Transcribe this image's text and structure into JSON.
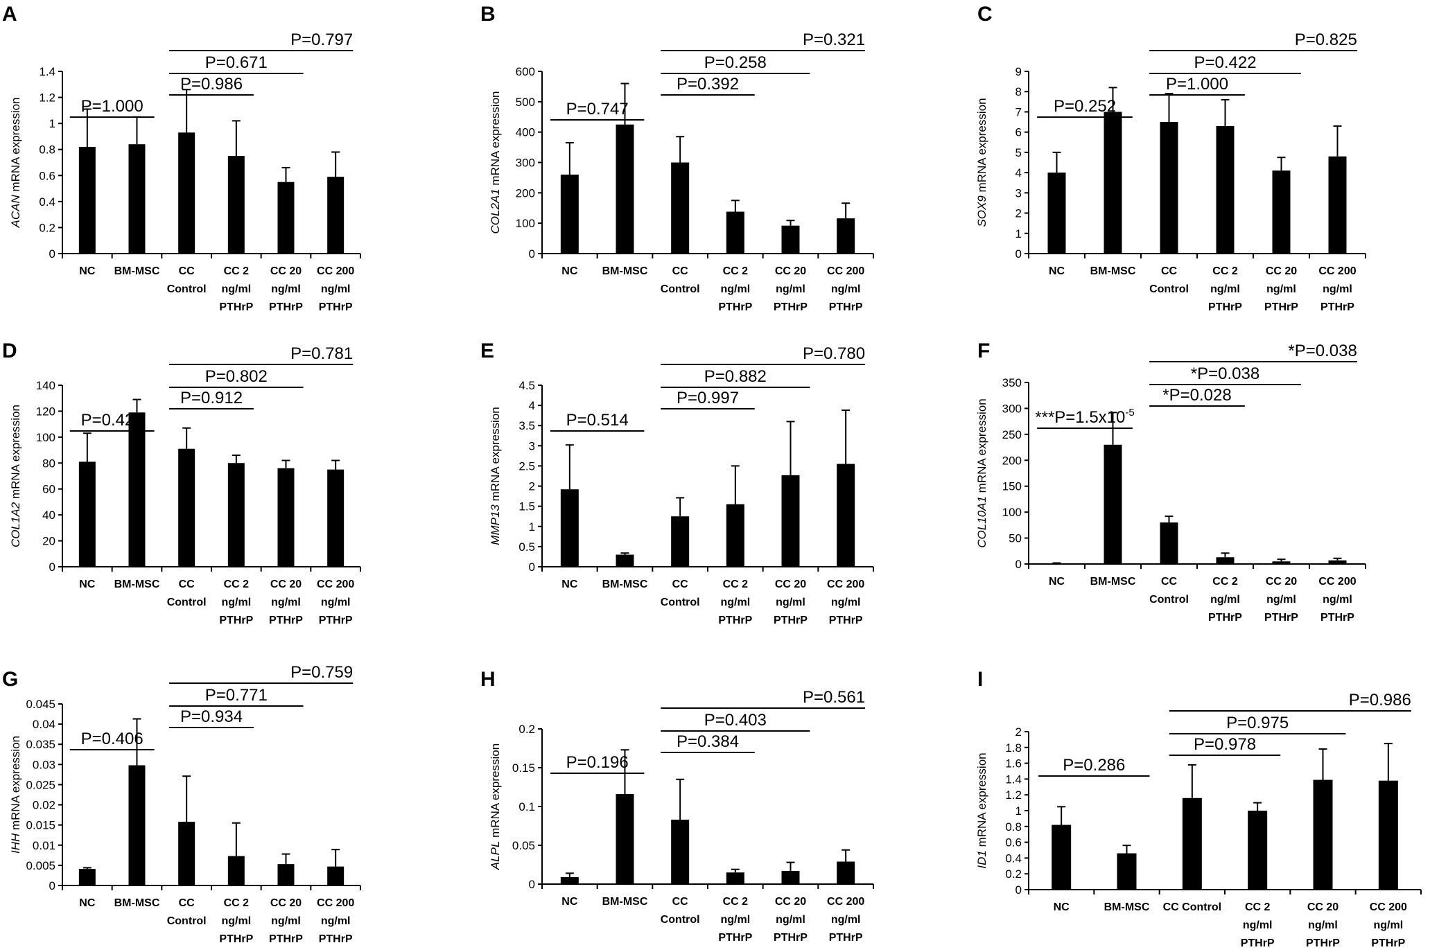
{
  "chart_data": [
    {
      "type": "bar",
      "letter": "A",
      "gene": "ACAN",
      "ylabel_suffix": " mRNA expression",
      "categories": [
        [
          "NC"
        ],
        [
          "BM-MSC"
        ],
        [
          "CC",
          "Control"
        ],
        [
          "CC 2",
          "ng/ml",
          "PTHrP"
        ],
        [
          "CC 20",
          "ng/ml",
          "PTHrP"
        ],
        [
          "CC 200",
          "ng/ml",
          "PTHrP"
        ]
      ],
      "values": [
        0.82,
        0.84,
        0.93,
        0.75,
        0.55,
        0.59
      ],
      "errors": [
        0.29,
        0.21,
        0.33,
        0.27,
        0.11,
        0.19
      ],
      "ylim": [
        0,
        1.4
      ],
      "ticks": [
        "0",
        "0.2",
        "0.4",
        "0.6",
        "0.8",
        "1",
        "1.2",
        "1.4"
      ],
      "comparisons": [
        {
          "from": 0,
          "to": 1,
          "label": "P=1.000"
        },
        {
          "from": 2,
          "to": 3,
          "label": "P=0.986"
        },
        {
          "from": 2,
          "to": 4,
          "label": "P=0.671"
        },
        {
          "from": 2,
          "to": 5,
          "label": "P=0.797"
        }
      ]
    },
    {
      "type": "bar",
      "letter": "B",
      "gene": "COL2A1",
      "ylabel_suffix": " mRNA expression",
      "categories": [
        [
          "NC"
        ],
        [
          "BM-MSC"
        ],
        [
          "CC",
          "Control"
        ],
        [
          "CC 2",
          "ng/ml",
          "PTHrP"
        ],
        [
          "CC 20",
          "ng/ml",
          "PTHrP"
        ],
        [
          "CC 200",
          "ng/ml",
          "PTHrP"
        ]
      ],
      "values": [
        260,
        425,
        300,
        138,
        92,
        116
      ],
      "errors": [
        105,
        135,
        85,
        37,
        17,
        50
      ],
      "ylim": [
        0,
        600
      ],
      "ticks": [
        "0",
        "100",
        "200",
        "300",
        "400",
        "500",
        "600"
      ],
      "comparisons": [
        {
          "from": 0,
          "to": 1,
          "label": "P=0.747"
        },
        {
          "from": 2,
          "to": 3,
          "label": "P=0.392"
        },
        {
          "from": 2,
          "to": 4,
          "label": "P=0.258"
        },
        {
          "from": 2,
          "to": 5,
          "label": "P=0.321"
        }
      ]
    },
    {
      "type": "bar",
      "letter": "C",
      "gene": "SOX9",
      "ylabel_suffix": " mRNA expression",
      "categories": [
        [
          "NC"
        ],
        [
          "BM-MSC"
        ],
        [
          "CC",
          "Control"
        ],
        [
          "CC 2",
          "ng/ml",
          "PTHrP"
        ],
        [
          "CC 20",
          "ng/ml",
          "PTHrP"
        ],
        [
          "CC 200",
          "ng/ml",
          "PTHrP"
        ]
      ],
      "values": [
        4.0,
        7.0,
        6.5,
        6.3,
        4.1,
        4.8
      ],
      "errors": [
        1.0,
        1.2,
        1.4,
        1.3,
        0.65,
        1.5
      ],
      "ylim": [
        0,
        9
      ],
      "ticks": [
        "0",
        "1",
        "2",
        "3",
        "4",
        "5",
        "6",
        "7",
        "8",
        "9"
      ],
      "comparisons": [
        {
          "from": 0,
          "to": 1,
          "label": "P=0.252"
        },
        {
          "from": 2,
          "to": 3,
          "label": "P=1.000"
        },
        {
          "from": 2,
          "to": 4,
          "label": "P=0.422"
        },
        {
          "from": 2,
          "to": 5,
          "label": "P=0.825"
        }
      ]
    },
    {
      "type": "bar",
      "letter": "D",
      "gene": "COL1A2",
      "ylabel_suffix": " mRNA expression",
      "categories": [
        [
          "NC"
        ],
        [
          "BM-MSC"
        ],
        [
          "CC",
          "Control"
        ],
        [
          "CC 2",
          "ng/ml",
          "PTHrP"
        ],
        [
          "CC 20",
          "ng/ml",
          "PTHrP"
        ],
        [
          "CC 200",
          "ng/ml",
          "PTHrP"
        ]
      ],
      "values": [
        81,
        119,
        91,
        80,
        76,
        75
      ],
      "errors": [
        22,
        10,
        16,
        6,
        6,
        7
      ],
      "ylim": [
        0,
        140
      ],
      "ticks": [
        "0",
        "20",
        "40",
        "60",
        "80",
        "100",
        "120",
        "140"
      ],
      "comparisons": [
        {
          "from": 0,
          "to": 1,
          "label": "P=0.420"
        },
        {
          "from": 2,
          "to": 3,
          "label": "P=0.912"
        },
        {
          "from": 2,
          "to": 4,
          "label": "P=0.802"
        },
        {
          "from": 2,
          "to": 5,
          "label": "P=0.781"
        }
      ]
    },
    {
      "type": "bar",
      "letter": "E",
      "gene": "MMP13",
      "ylabel_suffix": " mRNA expression",
      "categories": [
        [
          "NC"
        ],
        [
          "BM-MSC"
        ],
        [
          "CC",
          "Control"
        ],
        [
          "CC 2",
          "ng/ml",
          "PTHrP"
        ],
        [
          "CC 20",
          "ng/ml",
          "PTHrP"
        ],
        [
          "CC 200",
          "ng/ml",
          "PTHrP"
        ]
      ],
      "values": [
        1.92,
        0.3,
        1.25,
        1.55,
        2.27,
        2.55
      ],
      "errors": [
        1.1,
        0.04,
        0.46,
        0.95,
        1.33,
        1.33
      ],
      "ylim": [
        0,
        4.5
      ],
      "ticks": [
        "0",
        "0.5",
        "1",
        "1.5",
        "2",
        "2.5",
        "3",
        "3.5",
        "4",
        "4.5"
      ],
      "comparisons": [
        {
          "from": 0,
          "to": 1,
          "label": "P=0.514"
        },
        {
          "from": 2,
          "to": 3,
          "label": "P=0.997"
        },
        {
          "from": 2,
          "to": 4,
          "label": "P=0.882"
        },
        {
          "from": 2,
          "to": 5,
          "label": "P=0.780"
        }
      ]
    },
    {
      "type": "bar",
      "letter": "F",
      "gene": "COL10A1",
      "ylabel_suffix": " mRNA expression",
      "categories": [
        [
          "NC"
        ],
        [
          "BM-MSC"
        ],
        [
          "CC",
          "Control"
        ],
        [
          "CC 2",
          "ng/ml",
          "PTHrP"
        ],
        [
          "CC 20",
          "ng/ml",
          "PTHrP"
        ],
        [
          "CC 200",
          "ng/ml",
          "PTHrP"
        ]
      ],
      "values": [
        1,
        230,
        80,
        13,
        5,
        7
      ],
      "errors": [
        1,
        62,
        12,
        8,
        4,
        4
      ],
      "ylim": [
        0,
        350
      ],
      "ticks": [
        "0",
        "50",
        "100",
        "150",
        "200",
        "250",
        "300",
        "350"
      ],
      "comparisons": [
        {
          "from": 0,
          "to": 1,
          "label": "***P=1.5x10",
          "sup": "-5"
        },
        {
          "from": 2,
          "to": 3,
          "label": "*P=0.028"
        },
        {
          "from": 2,
          "to": 4,
          "label": "*P=0.038"
        },
        {
          "from": 2,
          "to": 5,
          "label": "*P=0.038"
        }
      ]
    },
    {
      "type": "bar",
      "letter": "G",
      "gene": "IHH",
      "ylabel_suffix": " mRNA expression",
      "categories": [
        [
          "NC"
        ],
        [
          "BM-MSC"
        ],
        [
          "CC",
          "Control"
        ],
        [
          "CC 2",
          "ng/ml",
          "PTHrP"
        ],
        [
          "CC 20",
          "ng/ml",
          "PTHrP"
        ],
        [
          "CC 200",
          "ng/ml",
          "PTHrP"
        ]
      ],
      "values": [
        0.0041,
        0.0298,
        0.0158,
        0.0073,
        0.0053,
        0.0047
      ],
      "errors": [
        0.0003,
        0.0115,
        0.0113,
        0.0082,
        0.0025,
        0.0042
      ],
      "ylim": [
        0,
        0.045
      ],
      "ticks": [
        "0",
        "0.005",
        "0.01",
        "0.015",
        "0.02",
        "0.025",
        "0.03",
        "0.035",
        "0.04",
        "0.045"
      ],
      "comparisons": [
        {
          "from": 0,
          "to": 1,
          "label": "P=0.406"
        },
        {
          "from": 2,
          "to": 3,
          "label": "P=0.934"
        },
        {
          "from": 2,
          "to": 4,
          "label": "P=0.771"
        },
        {
          "from": 2,
          "to": 5,
          "label": "P=0.759"
        }
      ]
    },
    {
      "type": "bar",
      "letter": "H",
      "gene": "ALPL",
      "ylabel_suffix": " mRNA expression",
      "categories": [
        [
          "NC"
        ],
        [
          "BM-MSC"
        ],
        [
          "CC",
          "Control"
        ],
        [
          "CC 2",
          "ng/ml",
          "PTHrP"
        ],
        [
          "CC 20",
          "ng/ml",
          "PTHrP"
        ],
        [
          "CC 200",
          "ng/ml",
          "PTHrP"
        ]
      ],
      "values": [
        0.009,
        0.116,
        0.083,
        0.015,
        0.017,
        0.029
      ],
      "errors": [
        0.005,
        0.057,
        0.052,
        0.004,
        0.011,
        0.015
      ],
      "ylim": [
        0,
        0.2
      ],
      "ticks": [
        "0",
        "0.05",
        "0.1",
        "0.15",
        "0.2"
      ],
      "comparisons": [
        {
          "from": 0,
          "to": 1,
          "label": "P=0.196"
        },
        {
          "from": 2,
          "to": 3,
          "label": "P=0.384"
        },
        {
          "from": 2,
          "to": 4,
          "label": "P=0.403"
        },
        {
          "from": 2,
          "to": 5,
          "label": "P=0.561"
        }
      ]
    },
    {
      "type": "bar",
      "letter": "I",
      "gene": "ID1",
      "ylabel_suffix": " mRNA expression",
      "categories": [
        [
          "NC"
        ],
        [
          "BM-MSC"
        ],
        [
          "CC Control"
        ],
        [
          "CC 2",
          "ng/ml",
          "PTHrP"
        ],
        [
          "CC 20",
          "ng/ml",
          "PTHrP"
        ],
        [
          "CC 200",
          "ng/ml",
          "PTHrP"
        ]
      ],
      "values": [
        0.82,
        0.46,
        1.16,
        1.0,
        1.39,
        1.38
      ],
      "errors": [
        0.23,
        0.1,
        0.42,
        0.1,
        0.39,
        0.47
      ],
      "ylim": [
        0,
        2
      ],
      "ticks": [
        "0",
        "0.2",
        "0.4",
        "0.6",
        "0.8",
        "1",
        "1.2",
        "1.4",
        "1.6",
        "1.8",
        "2"
      ],
      "comparisons": [
        {
          "from": 0,
          "to": 1,
          "label": "P=0.286"
        },
        {
          "from": 2,
          "to": 3,
          "label": "P=0.978"
        },
        {
          "from": 2,
          "to": 4,
          "label": "P=0.975"
        },
        {
          "from": 2,
          "to": 5,
          "label": "P=0.986"
        }
      ]
    }
  ]
}
